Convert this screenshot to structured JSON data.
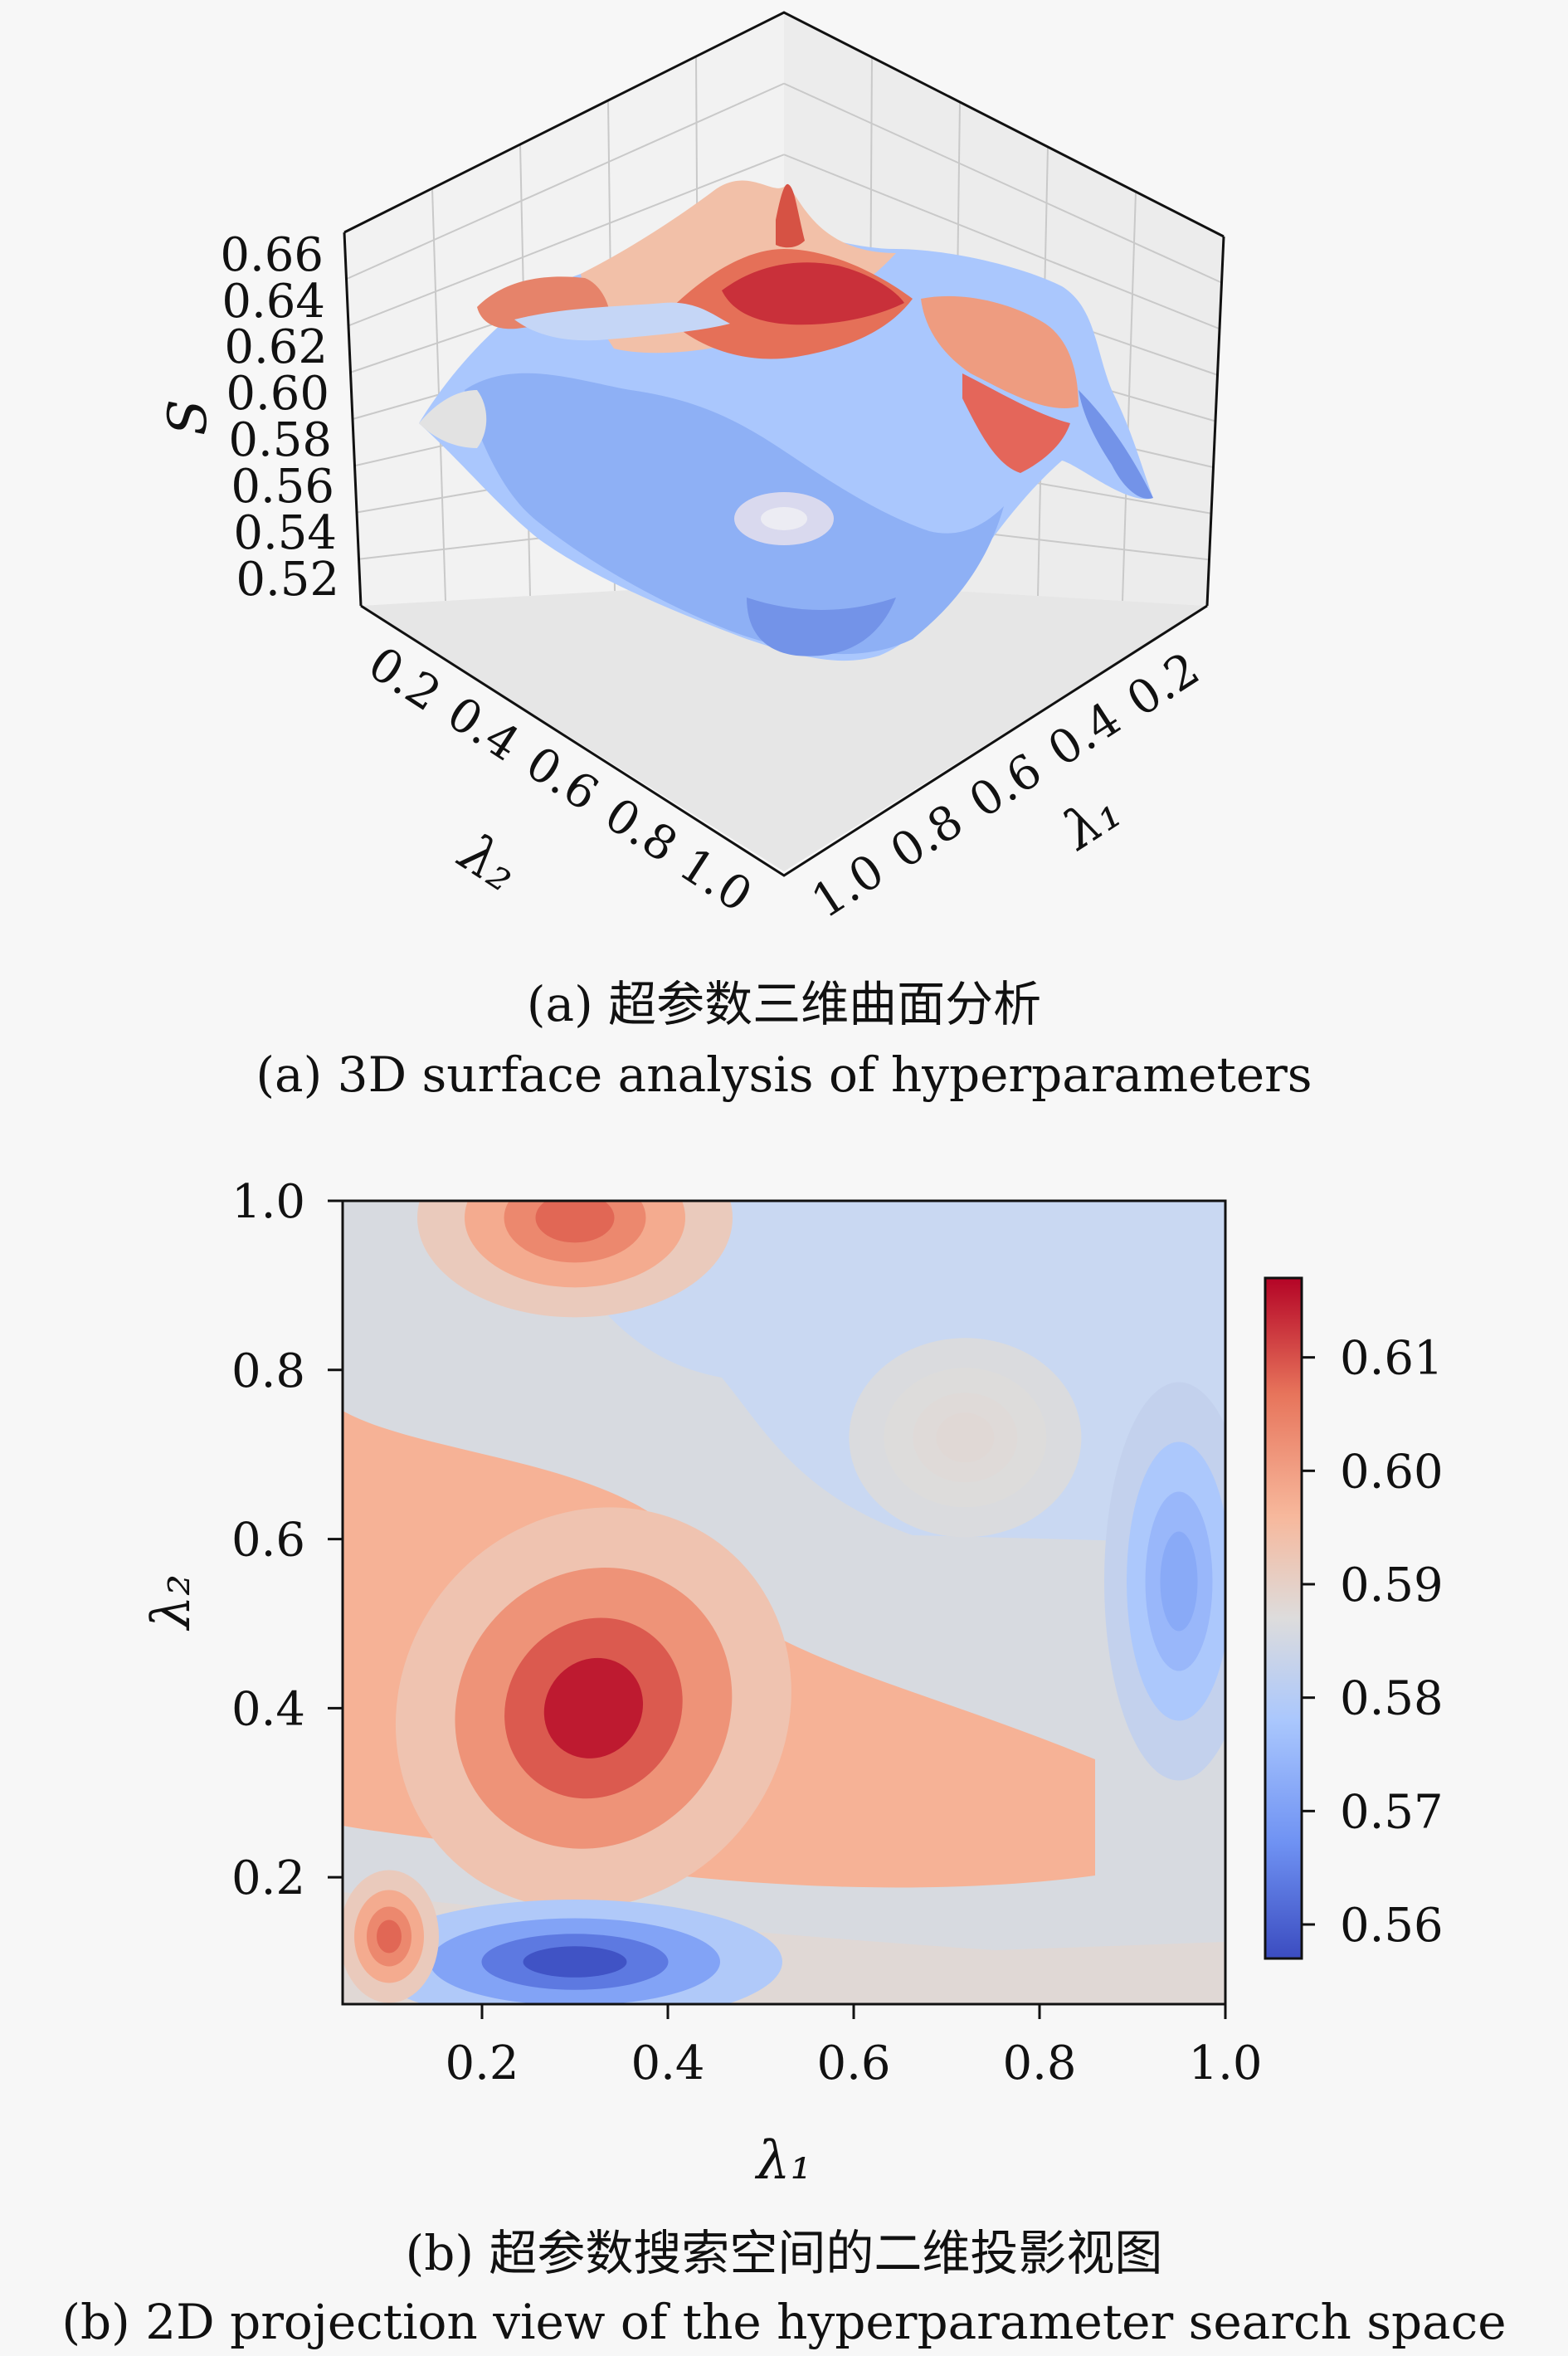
{
  "captions": {
    "a_zh": "(a) 超参数三维曲面分析",
    "a_en": "(a) 3D surface analysis of hyperparameters",
    "b_zh": "(b) 超参数搜索空间的二维投影视图",
    "b_en": "(b) 2D projection view of the hyperparameter search space"
  },
  "chart_data": [
    {
      "type": "surface",
      "zlabel": "S",
      "xlabel": "λ₁",
      "ylabel": "λ₂",
      "z_ticks": [
        "0.66",
        "0.64",
        "0.62",
        "0.60",
        "0.58",
        "0.56",
        "0.54",
        "0.52"
      ],
      "x_ticks": [
        "0.2",
        "0.4",
        "0.6",
        "0.8",
        "1.0"
      ],
      "y_ticks": [
        "0.2",
        "0.4",
        "0.6",
        "0.8",
        "1.0"
      ],
      "zlim": [
        0.52,
        0.66
      ],
      "xlim": [
        0.05,
        1.0
      ],
      "ylim": [
        0.05,
        1.0
      ],
      "colormap": "coolwarm",
      "grid": true
    },
    {
      "type": "heatmap",
      "xlabel": "λ₁",
      "ylabel": "λ₂",
      "x_ticks": [
        "0.2",
        "0.4",
        "0.6",
        "0.8",
        "1.0"
      ],
      "y_ticks": [
        "0.2",
        "0.4",
        "0.6",
        "0.8",
        "1.0"
      ],
      "colorbar_ticks": [
        "0.61",
        "0.60",
        "0.59",
        "0.58",
        "0.57",
        "0.56"
      ],
      "colorbar_range": [
        0.557,
        0.617
      ],
      "xlim": [
        0.05,
        1.0
      ],
      "ylim": [
        0.05,
        1.0
      ],
      "colormap": "coolwarm",
      "features": [
        {
          "lambda1": 0.32,
          "lambda2": 0.4,
          "value": 0.615
        },
        {
          "lambda1": 0.3,
          "lambda2": 0.1,
          "value": 0.558
        },
        {
          "lambda1": 0.3,
          "lambda2": 0.98,
          "value": 0.608
        },
        {
          "lambda1": 0.72,
          "lambda2": 0.72,
          "value": 0.588
        },
        {
          "lambda1": 0.1,
          "lambda2": 0.13,
          "value": 0.608
        },
        {
          "lambda1": 0.95,
          "lambda2": 0.55,
          "value": 0.572
        }
      ]
    }
  ]
}
